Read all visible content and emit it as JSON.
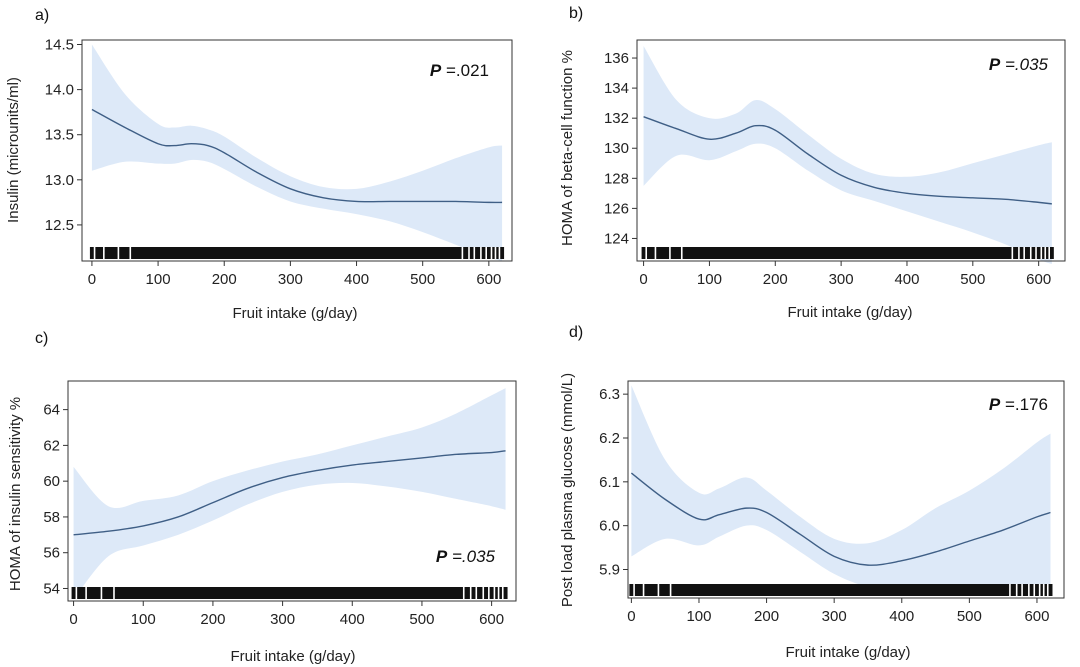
{
  "colors": {
    "band": "#dde9f8",
    "line": "#3f5f86",
    "axis": "#333333",
    "rug": "#111111"
  },
  "chart_data": [
    {
      "type": "line",
      "panel_label": "a)",
      "title": "",
      "xlabel": "Fruit intake (g/day)",
      "ylabel": "Insulin (microunits/ml)",
      "p_letter": "P",
      "p_rest": " =.021",
      "p_italic": false,
      "p_position": "top-right",
      "xlim": [
        -15,
        635
      ],
      "ylim": [
        12.1,
        14.55
      ],
      "xticks": [
        0,
        100,
        200,
        300,
        400,
        500,
        600
      ],
      "xtick_labels": [
        "0",
        "100",
        "200",
        "300",
        "400",
        "500",
        "600"
      ],
      "yticks": [
        12.5,
        13.0,
        13.5,
        14.0,
        14.5
      ],
      "ytick_labels": [
        "12.5",
        "13.0",
        "13.5",
        "14.0",
        "14.5"
      ],
      "x": [
        0,
        50,
        100,
        125,
        150,
        175,
        200,
        250,
        300,
        350,
        400,
        450,
        500,
        550,
        600,
        620
      ],
      "y": [
        13.78,
        13.58,
        13.4,
        13.38,
        13.4,
        13.38,
        13.3,
        13.08,
        12.9,
        12.8,
        12.76,
        12.76,
        12.76,
        12.76,
        12.75,
        12.75
      ],
      "lower": [
        13.1,
        13.2,
        13.18,
        13.18,
        13.22,
        13.2,
        13.12,
        12.92,
        12.76,
        12.68,
        12.62,
        12.54,
        12.42,
        12.28,
        12.14,
        12.1
      ],
      "upper": [
        14.5,
        13.95,
        13.62,
        13.58,
        13.6,
        13.56,
        13.48,
        13.24,
        13.04,
        12.92,
        12.9,
        12.98,
        13.1,
        13.24,
        13.36,
        13.38
      ]
    },
    {
      "type": "line",
      "panel_label": "b)",
      "title": "",
      "xlabel": "Fruit intake (g/day)",
      "ylabel": "HOMA of beta-cell function %",
      "p_letter": "P",
      "p_rest": " =.035",
      "p_italic": true,
      "p_position": "top-right",
      "xlim": [
        -10,
        640
      ],
      "ylim": [
        122.5,
        137.2
      ],
      "xticks": [
        0,
        100,
        200,
        300,
        400,
        500,
        600
      ],
      "xtick_labels": [
        "0",
        "100",
        "200",
        "300",
        "400",
        "500",
        "600"
      ],
      "yticks": [
        124,
        126,
        128,
        130,
        132,
        134,
        136
      ],
      "ytick_labels": [
        "124",
        "126",
        "128",
        "130",
        "132",
        "134",
        "136"
      ],
      "x": [
        0,
        50,
        100,
        140,
        170,
        200,
        250,
        300,
        350,
        400,
        450,
        500,
        550,
        600,
        620
      ],
      "y": [
        132.1,
        131.3,
        130.6,
        131.0,
        131.5,
        131.2,
        129.6,
        128.2,
        127.4,
        127.0,
        126.8,
        126.7,
        126.6,
        126.4,
        126.3
      ],
      "lower": [
        127.5,
        129.5,
        129.2,
        129.8,
        130.3,
        130.0,
        128.5,
        127.2,
        126.5,
        125.8,
        125.1,
        124.4,
        123.6,
        122.6,
        122.3
      ],
      "upper": [
        136.8,
        133.2,
        132.0,
        132.3,
        133.2,
        132.6,
        130.9,
        129.3,
        128.3,
        128.1,
        128.4,
        129.0,
        129.6,
        130.2,
        130.4
      ]
    },
    {
      "type": "line",
      "panel_label": "c)",
      "title": "",
      "xlabel": "Fruit intake (g/day)",
      "ylabel": "HOMA of insulin sensitivity %",
      "p_letter": "P",
      "p_rest": " =.035",
      "p_italic": true,
      "p_position": "bottom-right",
      "xlim": [
        -8,
        635
      ],
      "ylim": [
        53.3,
        65.6
      ],
      "xticks": [
        0,
        100,
        200,
        300,
        400,
        500,
        600
      ],
      "xtick_labels": [
        "0",
        "100",
        "200",
        "300",
        "400",
        "500",
        "600"
      ],
      "yticks": [
        54,
        56,
        58,
        60,
        62,
        64
      ],
      "ytick_labels": [
        "54",
        "56",
        "58",
        "60",
        "62",
        "64"
      ],
      "x": [
        0,
        50,
        100,
        150,
        200,
        250,
        300,
        350,
        400,
        450,
        500,
        550,
        600,
        620
      ],
      "y": [
        57.0,
        57.2,
        57.5,
        58.0,
        58.8,
        59.6,
        60.2,
        60.6,
        60.9,
        61.1,
        61.3,
        61.5,
        61.6,
        61.7
      ],
      "lower": [
        53.4,
        55.8,
        56.4,
        57.0,
        57.8,
        58.7,
        59.4,
        59.8,
        59.9,
        59.7,
        59.4,
        59.0,
        58.6,
        58.4
      ],
      "upper": [
        60.8,
        58.6,
        58.9,
        59.2,
        60.0,
        60.6,
        61.1,
        61.5,
        62.0,
        62.5,
        63.0,
        63.8,
        64.8,
        65.2
      ]
    },
    {
      "type": "line",
      "panel_label": "d)",
      "title": "",
      "xlabel": "Fruit intake (g/day)",
      "ylabel": "Post load plasma glucose (mmol/L)",
      "p_letter": "P",
      "p_rest": " =.176",
      "p_italic": false,
      "p_position": "top-right",
      "xlim": [
        -5,
        640
      ],
      "ylim": [
        5.835,
        6.33
      ],
      "xticks": [
        0,
        100,
        200,
        300,
        400,
        500,
        600
      ],
      "xtick_labels": [
        "0",
        "100",
        "200",
        "300",
        "400",
        "500",
        "600"
      ],
      "yticks": [
        5.9,
        6.0,
        6.1,
        6.2,
        6.3
      ],
      "ytick_labels": [
        "5.9",
        "6.0",
        "6.1",
        "6.2",
        "6.3"
      ],
      "x": [
        0,
        50,
        100,
        130,
        170,
        200,
        250,
        300,
        350,
        400,
        450,
        500,
        550,
        600,
        620
      ],
      "y": [
        6.12,
        6.06,
        6.015,
        6.025,
        6.04,
        6.03,
        5.98,
        5.93,
        5.91,
        5.92,
        5.94,
        5.965,
        5.99,
        6.02,
        6.03
      ],
      "lower": [
        5.93,
        5.97,
        5.955,
        5.975,
        6.0,
        5.99,
        5.94,
        5.89,
        5.86,
        5.85,
        5.85,
        5.85,
        5.85,
        5.85,
        5.85
      ],
      "upper": [
        6.32,
        6.15,
        6.075,
        6.085,
        6.11,
        6.08,
        6.02,
        5.97,
        5.96,
        5.99,
        6.04,
        6.08,
        6.13,
        6.19,
        6.21
      ]
    }
  ]
}
